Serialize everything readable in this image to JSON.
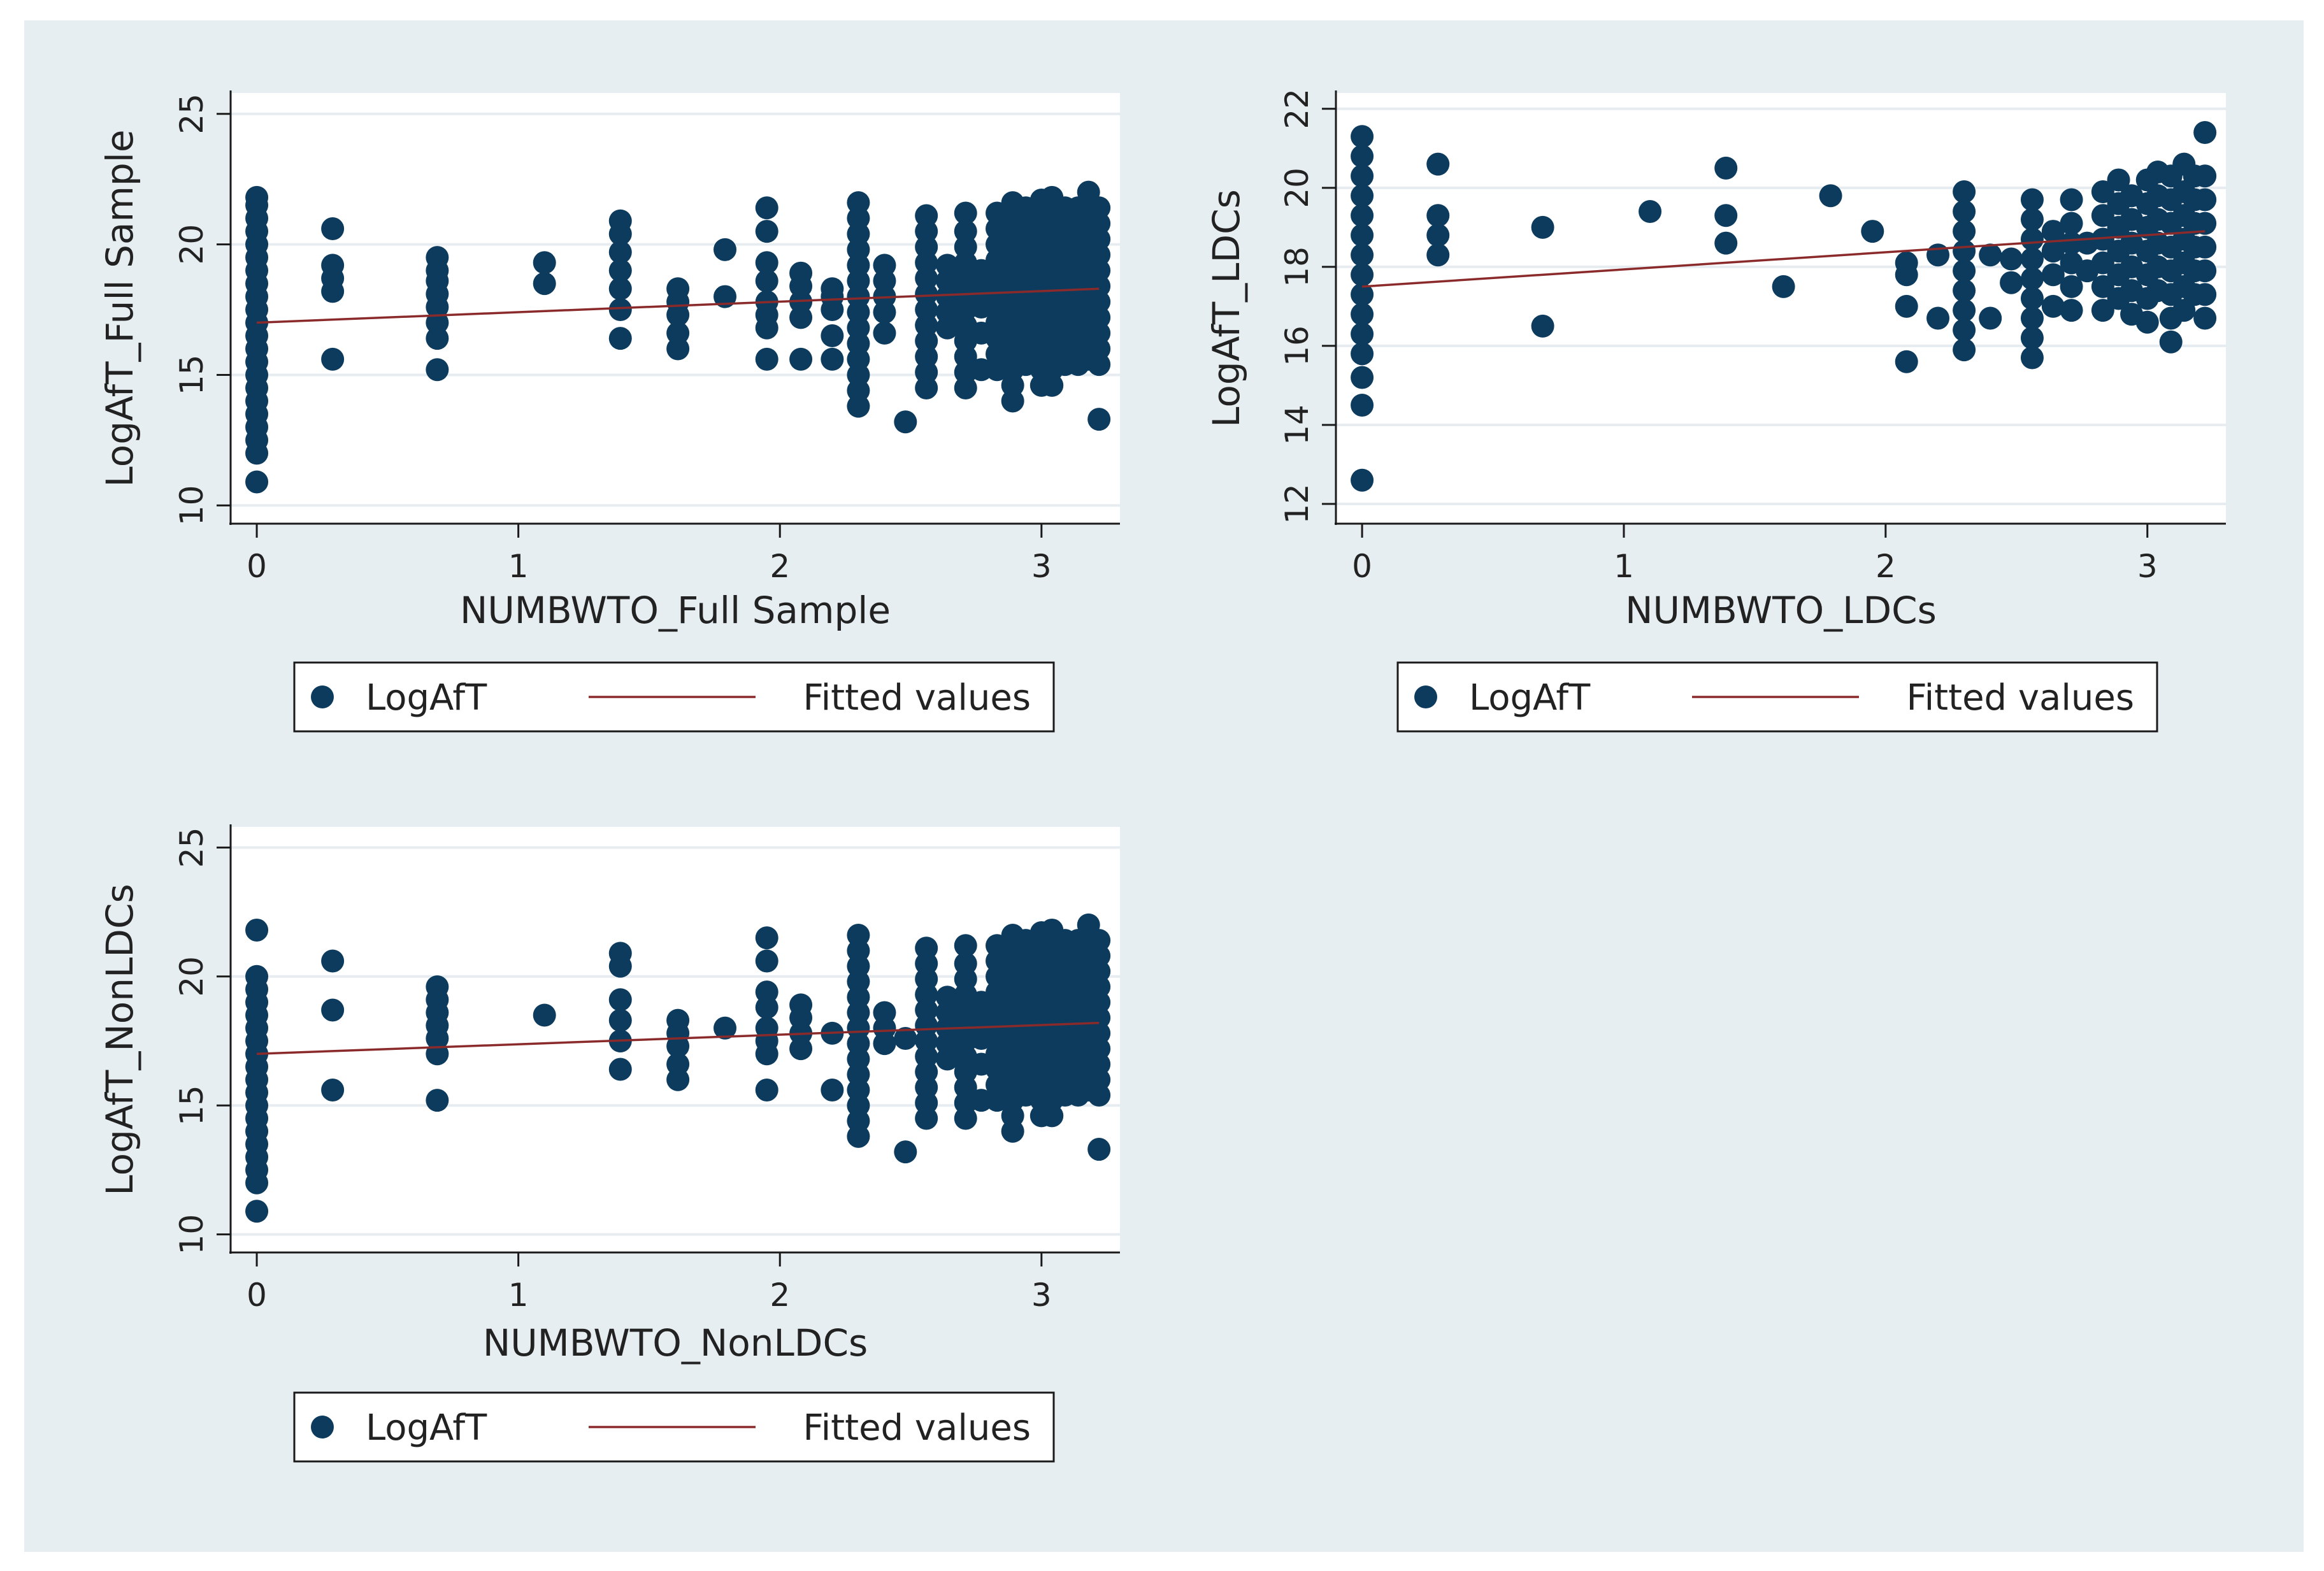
{
  "colors": {
    "outer_bg": "#ffffff",
    "panel_bg": "#e7eef2",
    "plot_bg": "#ffffff",
    "grid": "#e6ecf0",
    "axis": "#1a1a1a",
    "marker": "#0c3b5e",
    "fit_line": "#8b2a2a",
    "legend_border": "#1a1a1a"
  },
  "chart_data": [
    {
      "type": "scatter",
      "xlabel": "NUMBWTO_Full Sample",
      "ylabel": "LogAfT_Full Sample",
      "xlim": [
        -0.1,
        3.3
      ],
      "ylim": [
        9.3,
        25.8
      ],
      "xticks": [
        "0",
        "1",
        "2",
        "3"
      ],
      "yticks": [
        "10",
        "15",
        "20",
        "25"
      ],
      "xtick_values": [
        0,
        1,
        2,
        3
      ],
      "ytick_values": [
        10,
        15,
        20,
        25
      ],
      "grid": true,
      "fit": {
        "name": "Fitted values",
        "x": [
          0,
          3.22
        ],
        "y": [
          17.0,
          18.3
        ]
      },
      "columns": [
        {
          "x": 0,
          "y": [
            10.9,
            12.0,
            12.5,
            13.0,
            13.5,
            14.0,
            14.5,
            15.0,
            15.5,
            16.0,
            16.5,
            17.0,
            17.5,
            18.0,
            18.5,
            19.0,
            19.5,
            20.0,
            20.5,
            21.0,
            21.5,
            21.8
          ]
        },
        {
          "x": 0.29,
          "y": [
            15.6,
            18.2,
            18.7,
            19.2,
            20.6
          ]
        },
        {
          "x": 0.69,
          "y": [
            15.2,
            16.4,
            17.0,
            17.6,
            18.1,
            18.6,
            19.0,
            19.5
          ]
        },
        {
          "x": 1.1,
          "y": [
            18.5,
            19.3
          ]
        },
        {
          "x": 1.39,
          "y": [
            16.4,
            17.5,
            18.3,
            19.0,
            19.7,
            20.4,
            20.9
          ]
        },
        {
          "x": 1.61,
          "y": [
            16.0,
            16.6,
            17.3,
            17.8,
            18.3
          ]
        },
        {
          "x": 1.79,
          "y": [
            18.0,
            19.8
          ]
        },
        {
          "x": 1.95,
          "y": [
            15.6,
            16.8,
            17.3,
            17.8,
            18.6,
            19.3,
            20.5,
            21.4
          ]
        },
        {
          "x": 2.08,
          "y": [
            15.6,
            17.2,
            17.8,
            18.4,
            18.9
          ]
        },
        {
          "x": 2.2,
          "y": [
            15.6,
            16.5,
            17.5,
            18.0,
            18.3
          ]
        },
        {
          "x": 2.3,
          "y": [
            13.8,
            14.4,
            15.0,
            15.6,
            16.2,
            16.8,
            17.4,
            18.0,
            18.6,
            19.2,
            19.8,
            20.4,
            21.0,
            21.6
          ]
        },
        {
          "x": 2.4,
          "y": [
            16.6,
            17.4,
            18.0,
            18.6,
            19.2
          ]
        },
        {
          "x": 2.48,
          "y": [
            13.2
          ]
        },
        {
          "x": 2.56,
          "y": [
            14.5,
            15.1,
            15.7,
            16.3,
            16.9,
            17.5,
            18.1,
            18.7,
            19.3,
            19.9,
            20.5,
            21.1
          ]
        },
        {
          "x": 2.64,
          "y": [
            16.8,
            17.4,
            18.0,
            18.6,
            19.2
          ]
        },
        {
          "x": 2.71,
          "y": [
            14.5,
            15.1,
            15.7,
            16.3,
            16.9,
            17.5,
            18.1,
            18.7,
            19.3,
            19.9,
            20.5,
            21.2
          ]
        },
        {
          "x": 2.77,
          "y": [
            15.2,
            16.6,
            17.6,
            18.3,
            19.0
          ]
        },
        {
          "x": 2.83,
          "y": [
            15.2,
            15.8,
            16.4,
            17.0,
            17.6,
            18.2,
            18.8,
            19.4,
            20.0,
            20.6,
            21.2
          ]
        },
        {
          "x": 2.89,
          "y": [
            14.0,
            14.6,
            15.2,
            15.8,
            16.4,
            17.0,
            17.6,
            18.2,
            18.8,
            19.4,
            20.0,
            20.6,
            21.2,
            21.6
          ]
        },
        {
          "x": 2.94,
          "y": [
            15.4,
            16.0,
            16.6,
            17.2,
            17.8,
            18.4,
            19.0,
            19.6,
            20.2,
            20.8,
            21.4
          ]
        },
        {
          "x": 3.0,
          "y": [
            14.6,
            15.2,
            15.8,
            16.4,
            17.0,
            17.6,
            18.2,
            18.8,
            19.4,
            20.0,
            20.6,
            21.2,
            21.7
          ]
        },
        {
          "x": 3.04,
          "y": [
            14.6,
            15.2,
            15.8,
            16.4,
            17.0,
            17.6,
            18.2,
            18.8,
            19.4,
            20.0,
            20.6,
            21.2,
            21.8
          ]
        },
        {
          "x": 3.09,
          "y": [
            15.4,
            16.0,
            16.6,
            17.2,
            17.8,
            18.4,
            19.0,
            19.6,
            20.2,
            20.8,
            21.4
          ]
        },
        {
          "x": 3.14,
          "y": [
            15.4,
            16.0,
            16.6,
            17.2,
            17.8,
            18.4,
            19.0,
            19.6,
            20.2,
            20.8,
            21.4
          ]
        },
        {
          "x": 3.18,
          "y": [
            15.6,
            16.2,
            16.8,
            17.4,
            18.0,
            18.6,
            19.2,
            19.8,
            20.4,
            21.0,
            21.6,
            22.0
          ]
        },
        {
          "x": 3.22,
          "y": [
            13.3,
            15.4,
            16.0,
            16.6,
            17.2,
            17.8,
            18.4,
            19.0,
            19.6,
            20.2,
            20.8,
            21.4
          ]
        }
      ],
      "legend": {
        "position": "bottom",
        "entries": [
          "LogAfT",
          "Fitted values"
        ]
      }
    },
    {
      "type": "scatter",
      "xlabel": "NUMBWTO_LDCs",
      "ylabel": "LogAfT_LDCs",
      "xlim": [
        -0.1,
        3.3
      ],
      "ylim": [
        11.5,
        22.4
      ],
      "xticks": [
        "0",
        "1",
        "2",
        "3"
      ],
      "yticks": [
        "12",
        "14",
        "16",
        "18",
        "20",
        "22"
      ],
      "xtick_values": [
        0,
        1,
        2,
        3
      ],
      "ytick_values": [
        12,
        14,
        16,
        18,
        20,
        22
      ],
      "grid": true,
      "fit": {
        "name": "Fitted values",
        "x": [
          0,
          3.22
        ],
        "y": [
          17.5,
          18.9
        ]
      },
      "columns": [
        {
          "x": 0,
          "y": [
            12.6,
            14.5,
            15.2,
            15.8,
            16.3,
            16.8,
            17.3,
            17.8,
            18.3,
            18.8,
            19.3,
            19.8,
            20.3,
            20.8,
            21.3
          ]
        },
        {
          "x": 0.29,
          "y": [
            18.3,
            18.8,
            19.3,
            20.6
          ]
        },
        {
          "x": 0.69,
          "y": [
            16.5,
            19.0
          ]
        },
        {
          "x": 1.1,
          "y": [
            19.4
          ]
        },
        {
          "x": 1.39,
          "y": [
            18.6,
            19.3,
            20.5
          ]
        },
        {
          "x": 1.61,
          "y": [
            17.5
          ]
        },
        {
          "x": 1.79,
          "y": [
            19.8
          ]
        },
        {
          "x": 1.95,
          "y": [
            18.9
          ]
        },
        {
          "x": 2.08,
          "y": [
            15.6,
            17.0,
            17.8,
            18.1
          ]
        },
        {
          "x": 2.2,
          "y": [
            16.7,
            18.3
          ]
        },
        {
          "x": 2.3,
          "y": [
            15.9,
            16.4,
            16.9,
            17.4,
            17.9,
            18.4,
            18.9,
            19.4,
            19.9
          ]
        },
        {
          "x": 2.4,
          "y": [
            16.7,
            18.3
          ]
        },
        {
          "x": 2.48,
          "y": [
            17.6,
            18.2
          ]
        },
        {
          "x": 2.56,
          "y": [
            15.7,
            16.2,
            16.7,
            17.2,
            17.7,
            18.2,
            18.7,
            19.2,
            19.7
          ]
        },
        {
          "x": 2.64,
          "y": [
            17.0,
            17.8,
            18.4,
            18.9
          ]
        },
        {
          "x": 2.71,
          "y": [
            16.9,
            17.5,
            18.1,
            18.6,
            19.1,
            19.7
          ]
        },
        {
          "x": 2.77,
          "y": [
            17.9,
            18.6
          ]
        },
        {
          "x": 2.83,
          "y": [
            16.9,
            17.5,
            18.1,
            18.7,
            19.3,
            19.9
          ]
        },
        {
          "x": 2.89,
          "y": [
            17.2,
            17.8,
            18.4,
            19.0,
            19.6,
            20.2
          ]
        },
        {
          "x": 2.94,
          "y": [
            16.8,
            17.4,
            18.0,
            18.6,
            19.2,
            19.8
          ]
        },
        {
          "x": 3.0,
          "y": [
            16.6,
            17.2,
            17.8,
            18.4,
            19.0,
            19.6,
            20.2
          ]
        },
        {
          "x": 3.04,
          "y": [
            17.4,
            18.0,
            18.6,
            19.2,
            19.8,
            20.4
          ]
        },
        {
          "x": 3.09,
          "y": [
            16.1,
            16.7,
            17.3,
            17.9,
            18.5,
            19.1,
            19.7,
            20.3
          ]
        },
        {
          "x": 3.14,
          "y": [
            16.9,
            17.5,
            18.1,
            18.7,
            19.3,
            19.9,
            20.6
          ]
        },
        {
          "x": 3.18,
          "y": [
            17.3,
            17.9,
            18.5,
            19.1,
            19.7,
            20.3
          ]
        },
        {
          "x": 3.22,
          "y": [
            16.7,
            17.3,
            17.9,
            18.5,
            19.1,
            19.7,
            20.3,
            21.4
          ]
        }
      ],
      "legend": {
        "position": "bottom",
        "entries": [
          "LogAfT",
          "Fitted values"
        ]
      }
    },
    {
      "type": "scatter",
      "xlabel": "NUMBWTO_NonLDCs",
      "ylabel": "LogAfT_NonLDCs",
      "xlim": [
        -0.1,
        3.3
      ],
      "ylim": [
        9.3,
        25.8
      ],
      "xticks": [
        "0",
        "1",
        "2",
        "3"
      ],
      "yticks": [
        "10",
        "15",
        "20",
        "25"
      ],
      "xtick_values": [
        0,
        1,
        2,
        3
      ],
      "ytick_values": [
        10,
        15,
        20,
        25
      ],
      "grid": true,
      "fit": {
        "name": "Fitted values",
        "x": [
          0,
          3.22
        ],
        "y": [
          17.0,
          18.2
        ]
      },
      "columns": [
        {
          "x": 0,
          "y": [
            10.9,
            12.0,
            12.5,
            13.0,
            13.5,
            14.0,
            14.5,
            15.0,
            15.5,
            16.0,
            16.5,
            17.0,
            17.5,
            18.0,
            18.5,
            19.0,
            19.5,
            20.0,
            21.8
          ]
        },
        {
          "x": 0.29,
          "y": [
            15.6,
            18.7,
            20.6
          ]
        },
        {
          "x": 0.69,
          "y": [
            15.2,
            17.0,
            17.6,
            18.1,
            18.6,
            19.1,
            19.6
          ]
        },
        {
          "x": 1.1,
          "y": [
            18.5
          ]
        },
        {
          "x": 1.39,
          "y": [
            16.4,
            17.5,
            18.3,
            19.1,
            20.4,
            20.9
          ]
        },
        {
          "x": 1.61,
          "y": [
            16.0,
            16.6,
            17.3,
            17.8,
            18.3
          ]
        },
        {
          "x": 1.79,
          "y": [
            18.0
          ]
        },
        {
          "x": 1.95,
          "y": [
            15.6,
            17.0,
            17.5,
            18.0,
            18.8,
            19.4,
            20.6,
            21.5
          ]
        },
        {
          "x": 2.08,
          "y": [
            17.2,
            17.8,
            18.4,
            18.9
          ]
        },
        {
          "x": 2.2,
          "y": [
            15.6,
            17.8
          ]
        },
        {
          "x": 2.3,
          "y": [
            13.8,
            14.4,
            15.0,
            15.6,
            16.2,
            16.8,
            17.4,
            18.0,
            18.6,
            19.2,
            19.8,
            20.4,
            21.0,
            21.6
          ]
        },
        {
          "x": 2.4,
          "y": [
            17.4,
            18.0,
            18.6
          ]
        },
        {
          "x": 2.48,
          "y": [
            13.2,
            17.6
          ]
        },
        {
          "x": 2.56,
          "y": [
            14.5,
            15.1,
            15.7,
            16.3,
            16.9,
            17.5,
            18.1,
            18.7,
            19.3,
            19.9,
            20.5,
            21.1
          ]
        },
        {
          "x": 2.64,
          "y": [
            16.8,
            17.4,
            18.0,
            18.6,
            19.2
          ]
        },
        {
          "x": 2.71,
          "y": [
            14.5,
            15.1,
            15.7,
            16.3,
            16.9,
            17.5,
            18.1,
            18.7,
            19.3,
            19.9,
            20.5,
            21.2
          ]
        },
        {
          "x": 2.77,
          "y": [
            15.2,
            16.6,
            17.6,
            18.3,
            19.0
          ]
        },
        {
          "x": 2.83,
          "y": [
            15.2,
            15.8,
            16.4,
            17.0,
            17.6,
            18.2,
            18.8,
            19.4,
            20.0,
            20.6,
            21.2
          ]
        },
        {
          "x": 2.89,
          "y": [
            14.0,
            14.6,
            15.2,
            15.8,
            16.4,
            17.0,
            17.6,
            18.2,
            18.8,
            19.4,
            20.0,
            20.6,
            21.2,
            21.6
          ]
        },
        {
          "x": 2.94,
          "y": [
            15.4,
            16.0,
            16.6,
            17.2,
            17.8,
            18.4,
            19.0,
            19.6,
            20.2,
            20.8,
            21.4
          ]
        },
        {
          "x": 3.0,
          "y": [
            14.6,
            15.2,
            15.8,
            16.4,
            17.0,
            17.6,
            18.2,
            18.8,
            19.4,
            20.0,
            20.6,
            21.2,
            21.7
          ]
        },
        {
          "x": 3.04,
          "y": [
            14.6,
            15.2,
            15.8,
            16.4,
            17.0,
            17.6,
            18.2,
            18.8,
            19.4,
            20.0,
            20.6,
            21.2,
            21.8
          ]
        },
        {
          "x": 3.09,
          "y": [
            15.4,
            16.0,
            16.6,
            17.2,
            17.8,
            18.4,
            19.0,
            19.6,
            20.2,
            20.8,
            21.4
          ]
        },
        {
          "x": 3.14,
          "y": [
            15.4,
            16.0,
            16.6,
            17.2,
            17.8,
            18.4,
            19.0,
            19.6,
            20.2,
            20.8,
            21.4
          ]
        },
        {
          "x": 3.18,
          "y": [
            15.6,
            16.2,
            16.8,
            17.4,
            18.0,
            18.6,
            19.2,
            19.8,
            20.4,
            21.0,
            21.6,
            22.0
          ]
        },
        {
          "x": 3.22,
          "y": [
            13.3,
            15.4,
            16.0,
            16.6,
            17.2,
            17.8,
            18.4,
            19.0,
            19.6,
            20.2,
            20.8,
            21.4
          ]
        }
      ],
      "legend": {
        "position": "bottom",
        "entries": [
          "LogAfT",
          "Fitted values"
        ]
      }
    }
  ]
}
